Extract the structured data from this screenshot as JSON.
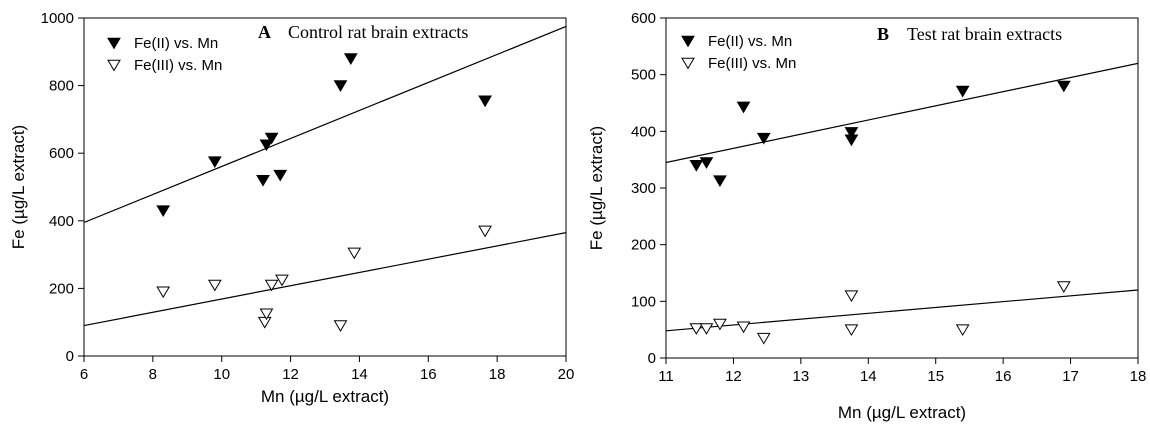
{
  "chart_data": [
    {
      "type": "scatter",
      "panel_letter": "A",
      "title": "Control rat brain extracts",
      "xlabel": "Mn (µg/L extract)",
      "ylabel": "Fe (µg/L extract)",
      "xlim": [
        6,
        20
      ],
      "ylim": [
        0,
        1000
      ],
      "xticks": [
        6,
        8,
        10,
        12,
        14,
        16,
        18,
        20
      ],
      "yticks": [
        0,
        200,
        400,
        600,
        800,
        1000
      ],
      "grid": false,
      "legend_position": "top-left",
      "series": [
        {
          "name": "Fe(II) vs. Mn",
          "marker": "filled-down-triangle",
          "color": "#000000",
          "x": [
            8.3,
            9.8,
            11.2,
            11.3,
            11.45,
            11.7,
            13.45,
            13.75,
            17.65
          ],
          "y": [
            430,
            575,
            520,
            625,
            645,
            535,
            800,
            880,
            755
          ],
          "fit_line": {
            "x": [
              6,
              20
            ],
            "y": [
              395,
              975
            ]
          }
        },
        {
          "name": "Fe(III) vs. Mn",
          "marker": "open-down-triangle",
          "color": "#000000",
          "x": [
            8.3,
            9.8,
            11.25,
            11.3,
            11.45,
            11.75,
            13.45,
            13.85,
            17.65
          ],
          "y": [
            190,
            210,
            100,
            125,
            210,
            225,
            90,
            305,
            370
          ],
          "fit_line": {
            "x": [
              6,
              20
            ],
            "y": [
              90,
              365
            ]
          }
        }
      ]
    },
    {
      "type": "scatter",
      "panel_letter": "B",
      "title": "Test rat brain extracts",
      "xlabel": "Mn (µg/L extract)",
      "ylabel": "Fe (µg/L extract)",
      "xlim": [
        11,
        18
      ],
      "ylim": [
        0,
        600
      ],
      "xticks": [
        11,
        12,
        13,
        14,
        15,
        16,
        17,
        18
      ],
      "yticks": [
        0,
        100,
        200,
        300,
        400,
        500,
        600
      ],
      "grid": false,
      "legend_position": "top-left",
      "series": [
        {
          "name": "Fe(II) vs. Mn",
          "marker": "filled-down-triangle",
          "color": "#000000",
          "x": [
            11.45,
            11.6,
            11.8,
            12.15,
            12.45,
            13.75,
            13.75,
            15.4,
            16.9
          ],
          "y": [
            340,
            345,
            313,
            443,
            388,
            385,
            398,
            471,
            480
          ],
          "fit_line": {
            "x": [
              11,
              18
            ],
            "y": [
              345,
              520
            ]
          }
        },
        {
          "name": "Fe(III) vs. Mn",
          "marker": "open-down-triangle",
          "color": "#000000",
          "x": [
            11.45,
            11.6,
            11.8,
            12.15,
            12.45,
            13.75,
            13.75,
            15.4,
            16.9
          ],
          "y": [
            52,
            52,
            60,
            55,
            35,
            110,
            50,
            50,
            126
          ],
          "fit_line": {
            "x": [
              11,
              18
            ],
            "y": [
              48,
              120
            ]
          }
        }
      ]
    }
  ]
}
